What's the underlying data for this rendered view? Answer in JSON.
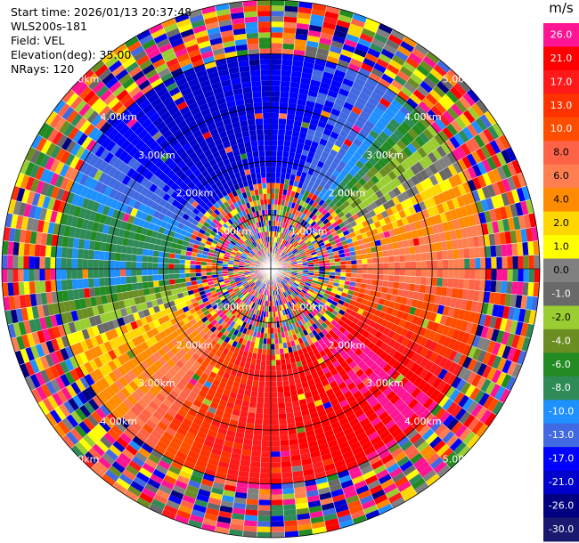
{
  "header": {
    "start_time": "Start time: 2026/01/13 20:37:48",
    "instrument": "WLS200s-181",
    "field": "Field: VEL",
    "elevation": "Elevation(deg): 35.00",
    "nrays": "NRays: 120"
  },
  "chart_data": {
    "type": "heatmap",
    "projection": "polar-ppi",
    "title": "",
    "field": "VEL",
    "unit": "m/s",
    "nrays": 120,
    "elevation_deg": 35.0,
    "max_range_km": 5.0,
    "range_rings_km": [
      1.0,
      2.0,
      3.0,
      4.0,
      5.0
    ],
    "range_ring_labels": [
      "1.00km",
      "2.00km",
      "3.00km",
      "4.00km",
      "5.00km"
    ],
    "range_label_note": "ring labels drawn along each diagonal",
    "colorbar_ticks": [
      "26.0",
      "21.0",
      "17.0",
      "13.0",
      "10.0",
      "8.0",
      "6.0",
      "4.0",
      "2.0",
      "1.0",
      "0.0",
      "-1.0",
      "-2.0",
      "-4.0",
      "-6.0",
      "-8.0",
      "-10.0",
      "-13.0",
      "-17.0",
      "-21.0",
      "-26.0",
      "-30.0"
    ],
    "colorbar_colors": [
      "#ff1493",
      "#ff0000",
      "#ff1a1a",
      "#ff3300",
      "#ff4d00",
      "#ff6347",
      "#ff7f50",
      "#ff8c00",
      "#ffd700",
      "#ffff00",
      "#808080",
      "#696969",
      "#9acd32",
      "#6b8e23",
      "#228b22",
      "#2e8b57",
      "#1e90ff",
      "#4169e1",
      "#0000ff",
      "#0000cd",
      "#000080",
      "#191970"
    ],
    "dominant_pattern": {
      "north": "blue (-17 to -26)",
      "northeast": "green (-4 to -8)",
      "east": "yellow/orange (2 to 8)",
      "southeast": "red/pink (17 to 26)",
      "south": "red (13 to 21)",
      "southwest": "yellow/orange (2 to 8)",
      "west": "blue/green (-6 to -13)",
      "northwest": "navy (-21 to -30)"
    }
  }
}
